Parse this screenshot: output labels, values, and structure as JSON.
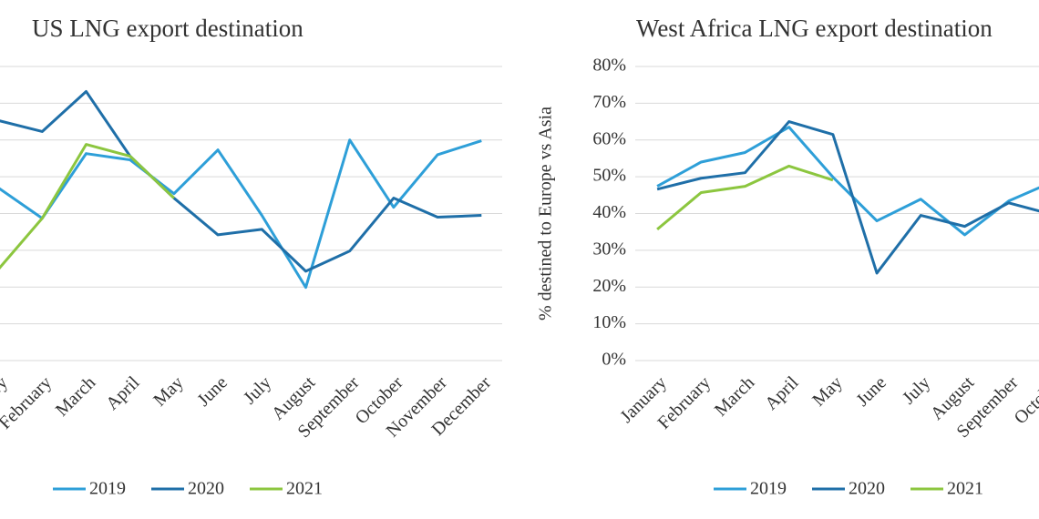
{
  "chart_data": [
    {
      "type": "line",
      "title": "US LNG export destination",
      "categories": [
        "January",
        "February",
        "March",
        "April",
        "May",
        "June",
        "July",
        "August",
        "September",
        "October",
        "November",
        "December"
      ],
      "series": [
        {
          "name": "2019",
          "color": "#2e9fd8",
          "values": [
            47,
            38.7,
            56.3,
            54.6,
            45.4,
            57.3,
            39.5,
            19.9,
            60,
            41.7,
            56,
            59.8
          ]
        },
        {
          "name": "2020",
          "color": "#1f6fa8",
          "values": [
            65.3,
            62.3,
            73.2,
            55.6,
            44.2,
            34.2,
            35.7,
            24.3,
            29.8,
            44.2,
            39,
            39.5
          ]
        },
        {
          "name": "2021",
          "color": "#8cc63f",
          "values": [
            24.8,
            38.7,
            58.8,
            55.6,
            44.2,
            null,
            null,
            null,
            null,
            null,
            null,
            null
          ]
        }
      ],
      "ylim": [
        0,
        80
      ],
      "yticks": [
        0,
        10,
        20,
        30,
        40,
        50,
        60,
        70,
        80
      ],
      "grid": true
    },
    {
      "type": "line",
      "title": "West Africa LNG export destination",
      "ylabel": "% destined to Europe vs Asia",
      "categories": [
        "January",
        "February",
        "March",
        "April",
        "May",
        "June",
        "July",
        "August",
        "September",
        "October"
      ],
      "series": [
        {
          "name": "2019",
          "color": "#2e9fd8",
          "values": [
            47.4,
            54,
            56.6,
            63.5,
            49.9,
            38,
            43.9,
            34.2,
            43.4,
            48.6
          ]
        },
        {
          "name": "2020",
          "color": "#1f6fa8",
          "values": [
            46.6,
            49.6,
            51.1,
            65,
            61.5,
            23.8,
            39.5,
            36.5,
            42.9,
            39.7
          ]
        },
        {
          "name": "2021",
          "color": "#8cc63f",
          "values": [
            35.7,
            45.7,
            47.4,
            52.9,
            49.1,
            null,
            null,
            null,
            null,
            null
          ]
        }
      ],
      "ylim": [
        0,
        80
      ],
      "yticks": [
        {
          "value": 0,
          "label": "0%"
        },
        {
          "value": 10,
          "label": "10%"
        },
        {
          "value": 20,
          "label": "20%"
        },
        {
          "value": 30,
          "label": "30%"
        },
        {
          "value": 40,
          "label": "40%"
        },
        {
          "value": 50,
          "label": "50%"
        },
        {
          "value": 60,
          "label": "60%"
        },
        {
          "value": 70,
          "label": "70%"
        },
        {
          "value": 80,
          "label": "80%"
        }
      ],
      "grid": true
    }
  ]
}
